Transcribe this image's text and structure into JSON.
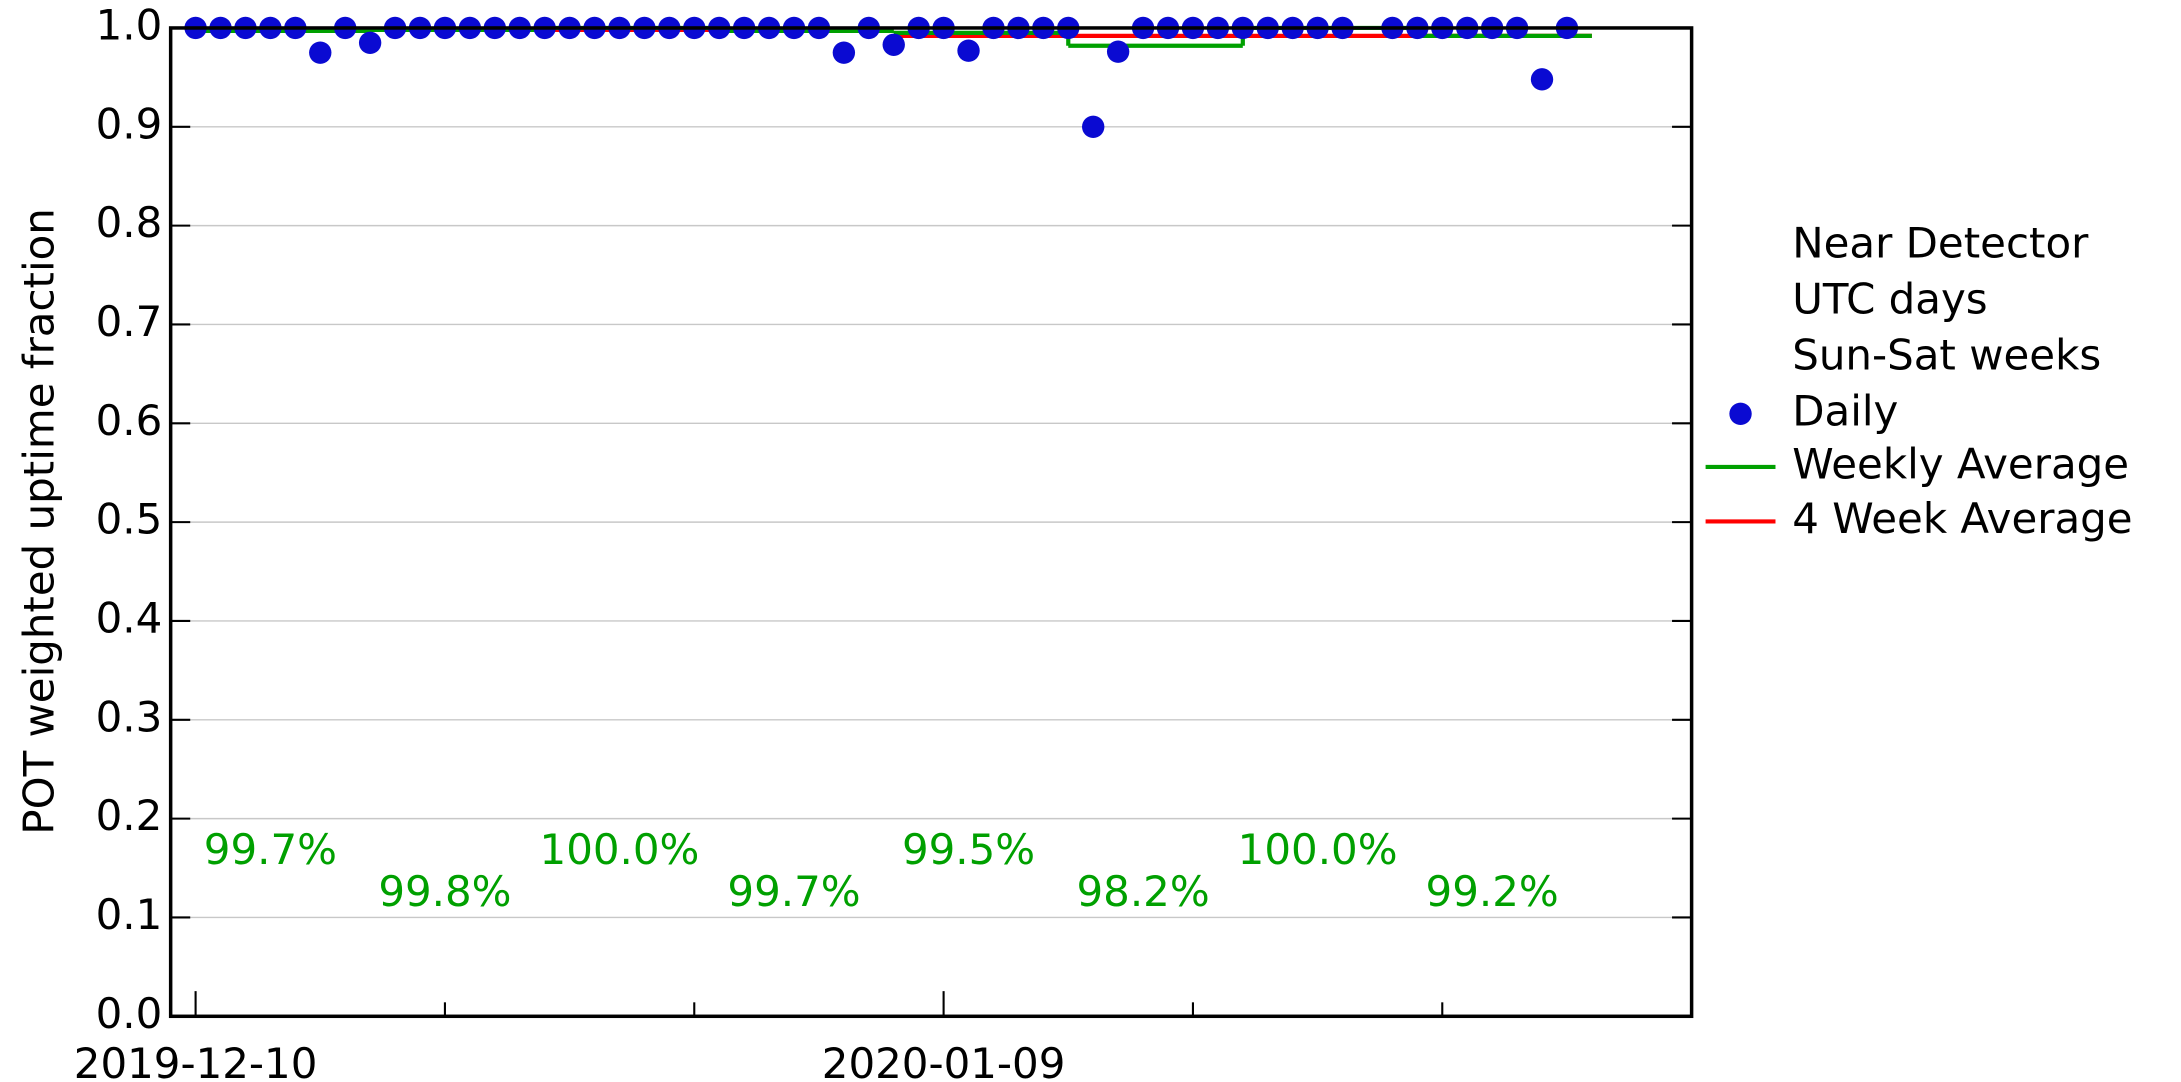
{
  "chart_data": {
    "type": "scatter",
    "ylabel": "POT weighted uptime fraction",
    "xlim": [
      "2019-12-09",
      "2020-02-08"
    ],
    "xticks": [
      "2019-12-10",
      "2020-01-09"
    ],
    "xticks_minor": [
      "2019-12-20",
      "2019-12-30",
      "2020-01-19",
      "2020-01-29"
    ],
    "ylim": [
      0,
      1
    ],
    "yticks": [
      {
        "value": 0,
        "label": "0.0"
      },
      0.1,
      0.2,
      0.3,
      0.4,
      0.5,
      0.6,
      0.7,
      0.8,
      0.9,
      {
        "value": 1,
        "label": "1.0"
      }
    ],
    "grid": true,
    "legend_notes": [
      "Near Detector",
      "UTC days",
      "Sun-Sat weeks"
    ],
    "series": [
      {
        "name": "Daily",
        "color": "#0a0ad2",
        "x": [
          "2019-12-10",
          "2019-12-11",
          "2019-12-12",
          "2019-12-13",
          "2019-12-14",
          "2019-12-15",
          "2019-12-16",
          "2019-12-17",
          "2019-12-18",
          "2019-12-19",
          "2019-12-20",
          "2019-12-21",
          "2019-12-22",
          "2019-12-23",
          "2019-12-24",
          "2019-12-25",
          "2019-12-26",
          "2019-12-27",
          "2019-12-28",
          "2019-12-29",
          "2019-12-30",
          "2019-12-31",
          "2020-01-01",
          "2020-01-02",
          "2020-01-03",
          "2020-01-04",
          "2020-01-05",
          "2020-01-06",
          "2020-01-07",
          "2020-01-08",
          "2020-01-09",
          "2020-01-10",
          "2020-01-11",
          "2020-01-12",
          "2020-01-13",
          "2020-01-14",
          "2020-01-15",
          "2020-01-16",
          "2020-01-17",
          "2020-01-18",
          "2020-01-19",
          "2020-01-20",
          "2020-01-21",
          "2020-01-22",
          "2020-01-23",
          "2020-01-24",
          "2020-01-25",
          "2020-01-27",
          "2020-01-28",
          "2020-01-29",
          "2020-01-30",
          "2020-01-31",
          "2020-02-01",
          "2020-02-02",
          "2020-02-03"
        ],
        "values": [
          1,
          1,
          1,
          1,
          1,
          0.975,
          1,
          0.985,
          1,
          1,
          1,
          1,
          1,
          1,
          1,
          1,
          1,
          1,
          1,
          1,
          1,
          1,
          1,
          1,
          1,
          1,
          0.975,
          1,
          0.983,
          1,
          1,
          0.977,
          1,
          1,
          1,
          1,
          0.9,
          0.976,
          1,
          1,
          1,
          1,
          1,
          1,
          1,
          1,
          1,
          1,
          1,
          1,
          1,
          1,
          1,
          0.948,
          1
        ]
      },
      {
        "name": "Weekly Average",
        "color": "#00a000",
        "x": [
          "2019-12-10",
          "2019-12-17",
          "2019-12-24",
          "2019-12-31",
          "2020-01-07",
          "2020-01-14",
          "2020-01-21",
          "2020-01-28"
        ],
        "values": [
          0.997,
          0.998,
          1.0,
          0.997,
          0.995,
          0.982,
          1.0,
          0.992
        ],
        "value_labels": [
          "99.7%",
          "99.8%",
          "100.0%",
          "99.7%",
          "99.5%",
          "98.2%",
          "100.0%",
          "99.2%"
        ]
      },
      {
        "name": "4 Week Average",
        "color": "#ff0000",
        "x": [
          "2019-12-10",
          "2020-01-07"
        ],
        "values": [
          0.998,
          0.992
        ]
      }
    ]
  }
}
